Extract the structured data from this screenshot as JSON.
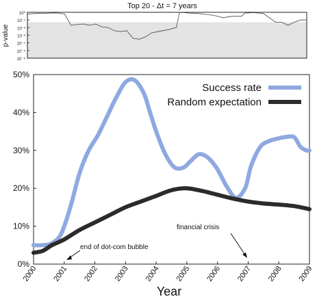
{
  "chart_data": [
    {
      "type": "line",
      "title": "Top 20 - Δt = 7 years",
      "ylabel": "p-value",
      "yscale": "log",
      "ylim": [
        1e-06,
        1
      ],
      "yticks": [
        "10⁰",
        "10⁻¹",
        "10⁻²",
        "10⁻³",
        "10⁻⁴",
        "10⁻⁵",
        "10⁻⁶"
      ],
      "shaded_band": [
        1e-06,
        0.05
      ],
      "xlim": [
        2000,
        2009
      ],
      "series": [
        {
          "x": [
            2000.0,
            2000.3,
            2000.6,
            2000.9,
            2001.0,
            2001.2,
            2001.4,
            2001.6,
            2001.8,
            2002.0,
            2002.2,
            2002.4,
            2002.6,
            2002.8,
            2003.0,
            2003.2,
            2003.4,
            2003.6,
            2003.8,
            2004.0,
            2004.2,
            2004.5,
            2004.8,
            2004.9,
            2005.0,
            2005.2,
            2005.5,
            2005.8,
            2006.0,
            2006.3,
            2006.6,
            2006.9,
            2007.0,
            2007.3,
            2007.6,
            2007.9,
            2008.0,
            2008.2,
            2008.4,
            2008.6,
            2008.8,
            2009.0
          ],
          "y": [
            0.6,
            0.7,
            0.75,
            0.85,
            0.8,
            0.6,
            0.02,
            0.025,
            0.03,
            0.02,
            0.03,
            0.012,
            0.01,
            0.004,
            0.003,
            0.004,
            0.0004,
            0.0003,
            0.0006,
            0.002,
            0.003,
            0.005,
            0.01,
            0.9,
            0.95,
            0.8,
            0.7,
            0.5,
            0.4,
            0.2,
            0.3,
            0.3,
            0.8,
            0.9,
            0.7,
            0.1,
            0.05,
            0.05,
            0.02,
            0.05,
            0.1,
            0.1
          ]
        }
      ]
    },
    {
      "type": "line",
      "xlabel": "Year",
      "ylabel": "",
      "xlim": [
        2000,
        2009
      ],
      "ylim": [
        0,
        50
      ],
      "xticks": [
        "2000",
        "2001",
        "2002",
        "2003",
        "2004",
        "2005",
        "2006",
        "2007",
        "2008",
        "2009"
      ],
      "yticks": [
        "0%",
        "10%",
        "20%",
        "30%",
        "40%",
        "50%"
      ],
      "legend": "top-right",
      "series": [
        {
          "name": "Success rate",
          "color": "#8fa9e0",
          "x": [
            2000.0,
            2000.3,
            2000.6,
            2000.9,
            2001.2,
            2001.5,
            2001.8,
            2002.1,
            2002.4,
            2002.7,
            2003.0,
            2003.3,
            2003.6,
            2003.8,
            2004.0,
            2004.3,
            2004.6,
            2004.9,
            2005.1,
            2005.4,
            2005.7,
            2006.0,
            2006.3,
            2006.6,
            2006.9,
            2007.1,
            2007.4,
            2007.7,
            2007.9,
            2008.2,
            2008.5,
            2008.7,
            2008.9,
            2009.0
          ],
          "y": [
            5,
            5,
            5.5,
            8,
            15,
            24,
            30,
            34,
            39,
            44,
            48,
            48.5,
            45,
            40,
            35,
            29,
            25.5,
            25.5,
            27,
            29,
            28,
            25,
            20.5,
            17.5,
            20,
            26,
            31,
            32.5,
            33,
            33.5,
            33.5,
            31,
            30,
            30
          ]
        },
        {
          "name": "Random expectation",
          "color": "#2b2b2b",
          "x": [
            2000.0,
            2000.3,
            2000.6,
            2001.0,
            2001.5,
            2002.0,
            2002.5,
            2003.0,
            2003.5,
            2004.0,
            2004.5,
            2005.0,
            2005.5,
            2006.0,
            2006.5,
            2007.0,
            2007.5,
            2008.0,
            2008.5,
            2009.0
          ],
          "y": [
            3,
            3.5,
            5,
            6.5,
            9,
            11,
            13,
            15,
            16.5,
            18,
            19.5,
            20,
            19.3,
            18.3,
            17.3,
            16.5,
            16,
            15.7,
            15.3,
            14.5
          ]
        }
      ]
    }
  ],
  "annotations": {
    "dotcom": "end of dot-com bubble",
    "crisis": "financial crisis"
  }
}
